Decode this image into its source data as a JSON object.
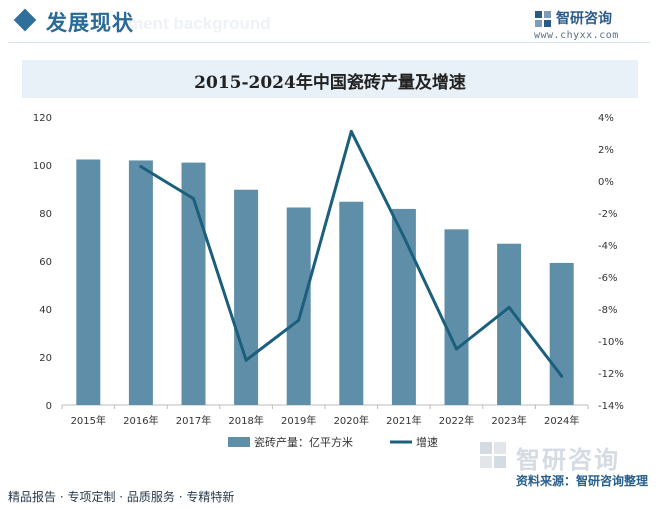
{
  "header": {
    "section_title": "发展现状",
    "background_text": "ment background",
    "brand_name": "智研咨询",
    "brand_url": "www.chyxx.com"
  },
  "chart_title": "2015-2024年中国瓷砖产量及增速",
  "chart_data": {
    "type": "bar",
    "title": "2015-2024年中国瓷砖产量及增速",
    "categories": [
      "2015年",
      "2016年",
      "2017年",
      "2018年",
      "2019年",
      "2020年",
      "2021年",
      "2022年",
      "2023年",
      "2024年"
    ],
    "series": [
      {
        "name": "瓷砖产量：亿平方米",
        "type": "bar",
        "axis": "left",
        "color": "#5f8fa8",
        "values": [
          102.3,
          101.9,
          101.0,
          89.7,
          82.3,
          84.7,
          81.7,
          73.2,
          67.2,
          59.2
        ]
      },
      {
        "name": "增速",
        "type": "line",
        "axis": "right",
        "color": "#1b5f7c",
        "values": [
          null,
          0.9,
          -1.1,
          -11.2,
          -8.7,
          3.1,
          -3.5,
          -10.5,
          -7.9,
          -12.2
        ]
      }
    ],
    "y_left": {
      "min": 0,
      "max": 120,
      "step": 20,
      "ticks": [
        "0",
        "20",
        "40",
        "60",
        "80",
        "100",
        "120"
      ]
    },
    "y_right": {
      "min": -14,
      "max": 4,
      "step": 2,
      "ticks": [
        "-14%",
        "-12%",
        "-10%",
        "-8%",
        "-6%",
        "-4%",
        "-2%",
        "0%",
        "2%",
        "4%"
      ]
    },
    "grid": false,
    "legend_position": "bottom"
  },
  "footer": {
    "slogan": "精品报告 · 专项定制 · 品质服务 · 专精特新",
    "source": "资料来源：智研咨询整理",
    "watermark": "智研咨询"
  },
  "colors": {
    "accent": "#2a6a95",
    "bar": "#5f8fa8",
    "line": "#1b5f7c",
    "title_bar": "#e8f1f8"
  }
}
